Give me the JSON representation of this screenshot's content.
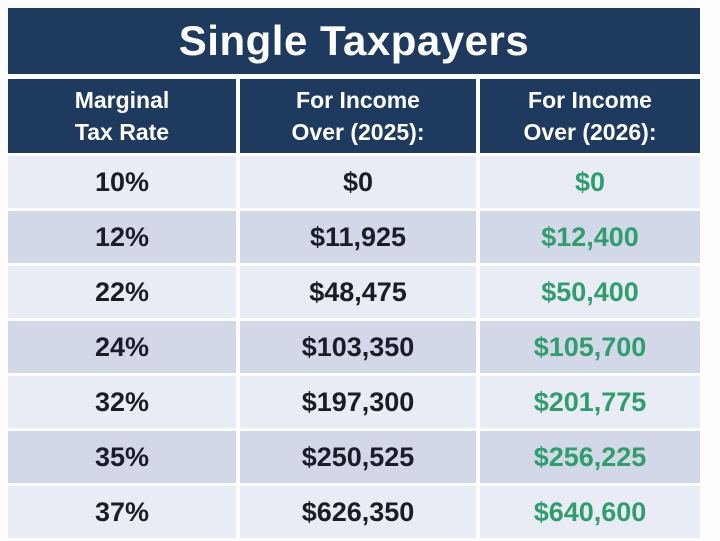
{
  "title": "Single Taxpayers",
  "colors": {
    "navy_header": "#1e3a5e",
    "green_value": "#2f9e6c",
    "row_light": "#eaecf5",
    "row_dark": "#d3d8e9",
    "dark_text": "#1c1c28",
    "header_text": "#ffffff"
  },
  "table": {
    "headers": [
      "Marginal\nTax Rate",
      "For Income\nOver (2025):",
      "For Income\nOver (2026):"
    ],
    "rows": [
      {
        "rate": "10%",
        "income_2025": "$0",
        "income_2026": "$0"
      },
      {
        "rate": "12%",
        "income_2025": "$11,925",
        "income_2026": "$12,400"
      },
      {
        "rate": "22%",
        "income_2025": "$48,475",
        "income_2026": "$50,400"
      },
      {
        "rate": "24%",
        "income_2025": "$103,350",
        "income_2026": "$105,700"
      },
      {
        "rate": "32%",
        "income_2025": "$197,300",
        "income_2026": "$201,775"
      },
      {
        "rate": "35%",
        "income_2025": "$250,525",
        "income_2026": "$256,225"
      },
      {
        "rate": "37%",
        "income_2025": "$626,350",
        "income_2026": "$640,600"
      }
    ]
  },
  "chart_data": {
    "type": "table",
    "title": "Single Taxpayers",
    "columns": [
      "Marginal Tax Rate",
      "For Income Over (2025):",
      "For Income Over (2026):"
    ],
    "rows": [
      [
        "10%",
        "$0",
        "$0"
      ],
      [
        "12%",
        "$11,925",
        "$12,400"
      ],
      [
        "22%",
        "$48,475",
        "$50,400"
      ],
      [
        "24%",
        "$103,350",
        "$105,700"
      ],
      [
        "32%",
        "$197,300",
        "$201,775"
      ],
      [
        "35%",
        "$250,525",
        "$256,225"
      ],
      [
        "37%",
        "$626,350",
        "$640,600"
      ]
    ],
    "marginal_rates_pct": [
      10,
      12,
      22,
      24,
      32,
      35,
      37
    ],
    "income_over_2025": [
      0,
      11925,
      48475,
      103350,
      197300,
      250525,
      626350
    ],
    "income_over_2026": [
      0,
      12400,
      50400,
      105700,
      201775,
      256225,
      640600
    ]
  }
}
